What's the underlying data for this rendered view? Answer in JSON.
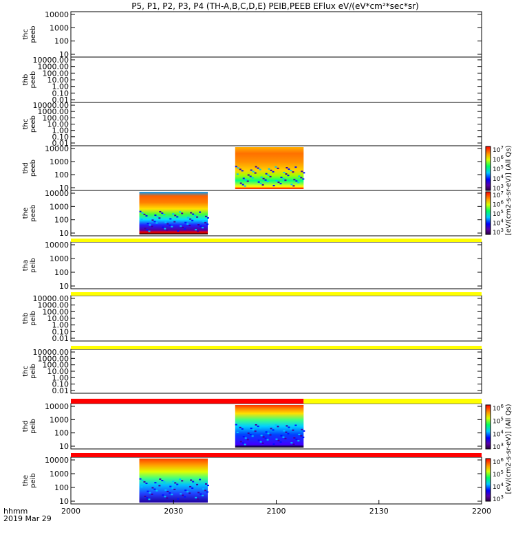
{
  "title": "P5, P1, P2, P3, P4 (TH-A,B,C,D,E) PEIB,PEEB EFlux eV/(eV*cm²*sec*sr)",
  "xaxis": {
    "label_line1": "hhmm",
    "label_line2": "2019 Mar 29",
    "ticks": [
      "2000",
      "2030",
      "2100",
      "2130",
      "2200"
    ],
    "range_hhmm": [
      "2000",
      "2200"
    ]
  },
  "colors": {
    "flag_yellow": "#ffff00",
    "flag_red": "#ff0000",
    "axis": "#000000"
  },
  "colorbars": [
    {
      "id": "peeb",
      "label": "[eV/(cm2-s-sr-eV)] (All Qs)",
      "tick_exponents": [
        3,
        4,
        5,
        6,
        7
      ]
    },
    {
      "id": "peib",
      "label": "[eV/(cm2-s-sr-eV)] (All Qs)",
      "tick_exponents": [
        3,
        4,
        5,
        6
      ]
    }
  ],
  "chart_data": [
    {
      "type": "heatmap",
      "ylabel": "thc peeb",
      "yticks": [
        "10",
        "100",
        "1000",
        "10000"
      ],
      "data_present": false,
      "colorbar": null
    },
    {
      "type": "heatmap",
      "ylabel": "thb peeb",
      "yticks": [
        "0.01",
        "0.10",
        "1.00",
        "10.00",
        "100.00",
        "1000.00",
        "10000.00"
      ],
      "data_present": false,
      "colorbar": null
    },
    {
      "type": "heatmap",
      "ylabel": "thc peeb",
      "yticks": [
        "0.01",
        "0.10",
        "1.00",
        "10.00",
        "100.00",
        "1000.00",
        "10000.00"
      ],
      "data_present": false,
      "colorbar": null
    },
    {
      "type": "heatmap",
      "ylabel": "thd peeb",
      "yticks": [
        "10",
        "100",
        "1000",
        "10000"
      ],
      "data_present": true,
      "colorbar": "peeb",
      "data_interval_hhmm": [
        "2048",
        "2108"
      ],
      "energy_range_ev": [
        5,
        25000
      ]
    },
    {
      "type": "heatmap",
      "ylabel": "the peeb",
      "yticks": [
        "10",
        "100",
        "1000",
        "10000"
      ],
      "data_present": true,
      "colorbar": "peeb",
      "data_interval_hhmm": [
        "2020",
        "2040"
      ],
      "energy_range_ev": [
        5,
        25000
      ]
    },
    {
      "type": "heatmap",
      "ylabel": "tha peib",
      "yticks": [
        "10",
        "100",
        "1000",
        "10000"
      ],
      "data_present": false,
      "colorbar": null
    },
    {
      "type": "heatmap",
      "ylabel": "thb peib",
      "yticks": [
        "0.01",
        "0.10",
        "1.00",
        "10.00",
        "100.00",
        "1000.00",
        "10000.00"
      ],
      "data_present": false,
      "colorbar": null
    },
    {
      "type": "heatmap",
      "ylabel": "thc peib",
      "yticks": [
        "0.01",
        "0.10",
        "1.00",
        "10.00",
        "100.00",
        "1000.00",
        "10000.00"
      ],
      "data_present": false,
      "colorbar": null
    },
    {
      "type": "heatmap",
      "ylabel": "thd peib",
      "yticks": [
        "10",
        "100",
        "1000",
        "10000"
      ],
      "data_present": true,
      "colorbar": "peib",
      "data_interval_hhmm": [
        "2048",
        "2108"
      ],
      "energy_range_ev": [
        5,
        25000
      ]
    },
    {
      "type": "heatmap",
      "ylabel": "the peib",
      "yticks": [
        "10",
        "100",
        "1000",
        "10000"
      ],
      "data_present": true,
      "colorbar": "peib",
      "data_interval_hhmm": [
        "2020",
        "2040"
      ],
      "energy_range_ev": [
        5,
        25000
      ]
    }
  ],
  "flag_bars": [
    {
      "after_panel": 4,
      "segments": [
        {
          "from": "2000",
          "to": "2200",
          "color": "yellow"
        }
      ]
    },
    {
      "after_panel": 5,
      "segments": [
        {
          "from": "2000",
          "to": "2200",
          "color": "yellow"
        }
      ]
    },
    {
      "after_panel": 6,
      "segments": [
        {
          "from": "2000",
          "to": "2200",
          "color": "yellow"
        }
      ]
    },
    {
      "after_panel": 7,
      "segments": [
        {
          "from": "2000",
          "to": "2108",
          "color": "red"
        },
        {
          "from": "2108",
          "to": "2200",
          "color": "yellow"
        }
      ]
    },
    {
      "after_panel": 8,
      "segments": [
        {
          "from": "2000",
          "to": "2200",
          "color": "red"
        }
      ]
    }
  ]
}
